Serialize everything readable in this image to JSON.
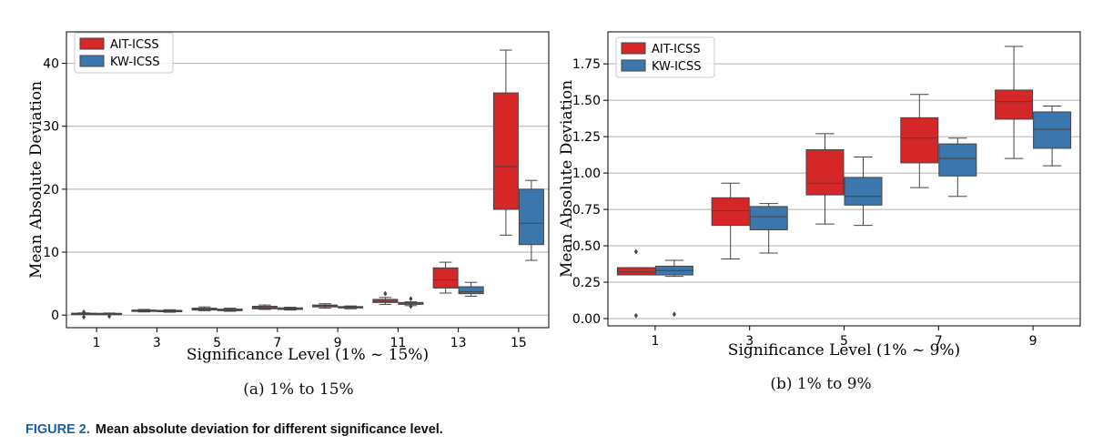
{
  "figure": {
    "label": "FIGURE 2.",
    "caption": "Mean absolute deviation for different significance level."
  },
  "colors": {
    "ait": "#d62728",
    "kw": "#3b77ad"
  },
  "chart_data": [
    {
      "type": "boxplot",
      "subcaption": "(a) 1% to 15%",
      "xlabel": "Significance Level (1% ~ 15%)",
      "ylabel": "Mean Absolute Deviation",
      "ylim": [
        -2,
        45
      ],
      "yticks": [
        0,
        10,
        20,
        30,
        40
      ],
      "ytick_labels": [
        "0",
        "10",
        "20",
        "30",
        "40"
      ],
      "categories": [
        "1",
        "3",
        "5",
        "7",
        "9",
        "11",
        "13",
        "15"
      ],
      "legend": [
        "AIT-ICSS",
        "KW-ICSS"
      ],
      "series": [
        {
          "name": "AIT-ICSS",
          "boxes": [
            {
              "wlo": 0.1,
              "q1": 0.15,
              "med": 0.22,
              "q3": 0.3,
              "whi": 0.35,
              "fliers": [
                -0.3,
                0.5
              ]
            },
            {
              "wlo": 0.5,
              "q1": 0.6,
              "med": 0.7,
              "q3": 0.8,
              "whi": 0.9,
              "fliers": []
            },
            {
              "wlo": 0.7,
              "q1": 0.8,
              "med": 0.9,
              "q3": 1.1,
              "whi": 1.3,
              "fliers": []
            },
            {
              "wlo": 0.9,
              "q1": 1.0,
              "med": 1.15,
              "q3": 1.4,
              "whi": 1.6,
              "fliers": []
            },
            {
              "wlo": 1.1,
              "q1": 1.3,
              "med": 1.45,
              "q3": 1.6,
              "whi": 1.8,
              "fliers": []
            },
            {
              "wlo": 1.7,
              "q1": 2.0,
              "med": 2.2,
              "q3": 2.5,
              "whi": 2.8,
              "fliers": [
                3.4
              ]
            },
            {
              "wlo": 3.5,
              "q1": 4.3,
              "med": 5.6,
              "q3": 7.5,
              "whi": 8.4,
              "fliers": []
            },
            {
              "wlo": 12.7,
              "q1": 16.8,
              "med": 23.6,
              "q3": 35.3,
              "whi": 42.1,
              "fliers": []
            }
          ]
        },
        {
          "name": "KW-ICSS",
          "boxes": [
            {
              "wlo": 0.1,
              "q1": 0.15,
              "med": 0.22,
              "q3": 0.28,
              "whi": 0.33,
              "fliers": [
                -0.2
              ]
            },
            {
              "wlo": 0.45,
              "q1": 0.55,
              "med": 0.65,
              "q3": 0.75,
              "whi": 0.85,
              "fliers": []
            },
            {
              "wlo": 0.6,
              "q1": 0.7,
              "med": 0.8,
              "q3": 0.95,
              "whi": 1.1,
              "fliers": []
            },
            {
              "wlo": 0.8,
              "q1": 0.9,
              "med": 1.0,
              "q3": 1.15,
              "whi": 1.25,
              "fliers": []
            },
            {
              "wlo": 1.0,
              "q1": 1.15,
              "med": 1.25,
              "q3": 1.35,
              "whi": 1.45,
              "fliers": []
            },
            {
              "wlo": 1.5,
              "q1": 1.7,
              "med": 1.9,
              "q3": 2.0,
              "whi": 2.1,
              "fliers": [
                1.4,
                2.6
              ]
            },
            {
              "wlo": 3.0,
              "q1": 3.4,
              "med": 3.7,
              "q3": 4.5,
              "whi": 5.2,
              "fliers": []
            },
            {
              "wlo": 8.7,
              "q1": 11.2,
              "med": 14.6,
              "q3": 20.0,
              "whi": 21.4,
              "fliers": []
            }
          ]
        }
      ]
    },
    {
      "type": "boxplot",
      "subcaption": "(b) 1% to 9%",
      "xlabel": "Significance Level (1% ~ 9%)",
      "ylabel": "Mean Absolute Deviation",
      "ylim": [
        -0.05,
        1.97
      ],
      "yticks": [
        0.0,
        0.25,
        0.5,
        0.75,
        1.0,
        1.25,
        1.5,
        1.75
      ],
      "ytick_labels": [
        "0.00",
        "0.25",
        "0.50",
        "0.75",
        "1.00",
        "1.25",
        "1.50",
        "1.75"
      ],
      "categories": [
        "1",
        "3",
        "5",
        "7",
        "9"
      ],
      "legend": [
        "AIT-ICSS",
        "KW-ICSS"
      ],
      "series": [
        {
          "name": "AIT-ICSS",
          "boxes": [
            {
              "wlo": 0.3,
              "q1": 0.3,
              "med": 0.32,
              "q3": 0.35,
              "whi": 0.35,
              "fliers": [
                0.02,
                0.46
              ]
            },
            {
              "wlo": 0.41,
              "q1": 0.64,
              "med": 0.74,
              "q3": 0.83,
              "whi": 0.93,
              "fliers": []
            },
            {
              "wlo": 0.65,
              "q1": 0.85,
              "med": 0.93,
              "q3": 1.16,
              "whi": 1.27,
              "fliers": []
            },
            {
              "wlo": 0.9,
              "q1": 1.07,
              "med": 1.24,
              "q3": 1.38,
              "whi": 1.54,
              "fliers": []
            },
            {
              "wlo": 1.1,
              "q1": 1.37,
              "med": 1.49,
              "q3": 1.57,
              "whi": 1.87,
              "fliers": []
            }
          ]
        },
        {
          "name": "KW-ICSS",
          "boxes": [
            {
              "wlo": 0.29,
              "q1": 0.3,
              "med": 0.33,
              "q3": 0.36,
              "whi": 0.4,
              "fliers": [
                0.03
              ]
            },
            {
              "wlo": 0.45,
              "q1": 0.61,
              "med": 0.7,
              "q3": 0.77,
              "whi": 0.79,
              "fliers": []
            },
            {
              "wlo": 0.64,
              "q1": 0.78,
              "med": 0.84,
              "q3": 0.97,
              "whi": 1.11,
              "fliers": []
            },
            {
              "wlo": 0.84,
              "q1": 0.98,
              "med": 1.1,
              "q3": 1.2,
              "whi": 1.24,
              "fliers": []
            },
            {
              "wlo": 1.05,
              "q1": 1.17,
              "med": 1.3,
              "q3": 1.42,
              "whi": 1.46,
              "fliers": []
            }
          ]
        }
      ]
    }
  ]
}
